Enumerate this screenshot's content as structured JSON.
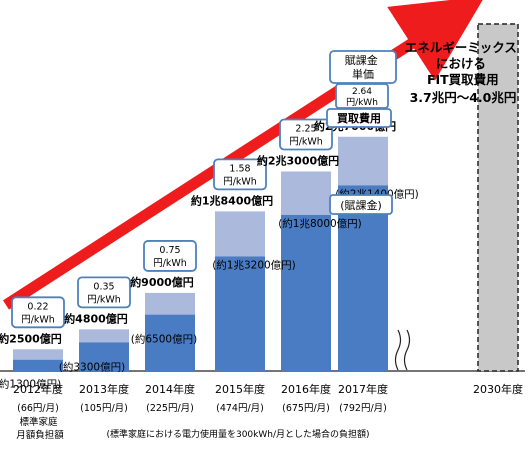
{
  "chart_data": {
    "type": "bar",
    "stacked": true,
    "categories": [
      "2012年度",
      "2013年度",
      "2014年度",
      "2015年度",
      "2016年度",
      "2017年度"
    ],
    "sublabels": [
      "(66円/月)",
      "(105円/月)",
      "(225円/月)",
      "(474円/月)",
      "(675円/月)",
      "(792円/月)"
    ],
    "future_category": "2030年度",
    "series": [
      {
        "name": "賦課金",
        "color": "#4a7cc4",
        "values": [
          1300,
          3300,
          6500,
          13200,
          18000,
          21400
        ]
      },
      {
        "name": "",
        "color": "#aab9dc",
        "values": [
          1200,
          1500,
          2500,
          5200,
          5000,
          5600
        ]
      }
    ],
    "totals": [
      2500,
      4800,
      9000,
      18400,
      23000,
      27000
    ],
    "ylim": [
      0,
      40000
    ],
    "total_labels": [
      "約2500億円",
      "約4800億円",
      "約9000億円",
      "約1兆8400億円",
      "約2兆3000億円",
      "約2兆7000億円"
    ],
    "levy_labels": [
      "(約1300億円)",
      "(約3300億円)",
      "(約6500億円)",
      "(約1兆3200億円)",
      "(約1兆8000億円)",
      "(約2兆1400億円)"
    ],
    "unit_price_labels": [
      "0.22\n円/kWh",
      "0.35\n円/kWh",
      "0.75\n円/kWh",
      "1.58\n円/kWh",
      "2.25\n円/kWh",
      "2.64\n円/kWh"
    ],
    "legend": {
      "unit_price": "賦課金\n単価",
      "purchase_cost": "買取費用",
      "levy": "(賦課金)"
    },
    "left_note": "標準家庭\n月額負担額",
    "bottom_note": "(標準家庭における電力使用量を300kWh/月とした場合の負担額)",
    "annotation_2030": "エネルギーミックス\nにおける\nFIT買取費用\n3.7兆円～4.0兆円",
    "colors": {
      "levy": "#4a7cc4",
      "purchase": "#aab9dc",
      "arrow": "#ee1c1c",
      "box_border": "#4f81bd",
      "future_bar": "#c8c8c8"
    }
  }
}
